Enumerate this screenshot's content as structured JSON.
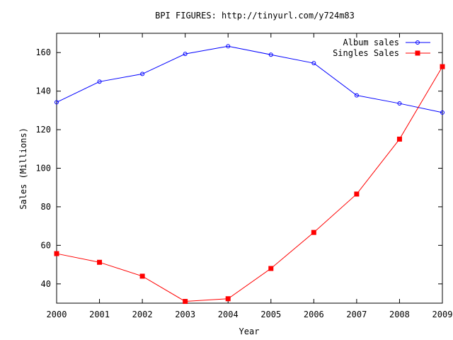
{
  "chart_data": {
    "type": "line",
    "title": "BPI FIGURES: http://tinyurl.com/y724m83",
    "xlabel": "Year",
    "ylabel": "Sales (Millions)",
    "x": [
      2000,
      2001,
      2002,
      2003,
      2004,
      2005,
      2006,
      2007,
      2008,
      2009
    ],
    "xlim": [
      2000,
      2009
    ],
    "ylim": [
      30,
      170
    ],
    "yticks": [
      40,
      60,
      80,
      100,
      120,
      140,
      160
    ],
    "grid": false,
    "legend_position": "top-right",
    "series": [
      {
        "name": "Album sales",
        "color": "#0000ff",
        "marker": "circle",
        "values": [
          134.2,
          144.9,
          148.9,
          159.3,
          163.3,
          158.9,
          154.5,
          137.8,
          133.6,
          128.9
        ]
      },
      {
        "name": "Singles Sales",
        "color": "#ff0000",
        "marker": "square",
        "values": [
          55.7,
          51.2,
          44.0,
          30.9,
          32.3,
          48.0,
          66.7,
          86.6,
          115.1,
          152.7
        ]
      }
    ]
  }
}
